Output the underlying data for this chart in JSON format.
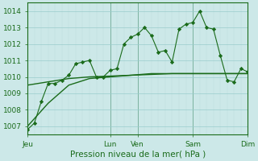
{
  "title": "",
  "xlabel": "Pression niveau de la mer( hPa )",
  "bg_color": "#cce8e8",
  "grid_color_major": "#99cccc",
  "grid_color_minor": "#bbdddd",
  "line_color": "#1a6b1a",
  "ylim": [
    1006.5,
    1014.5
  ],
  "xlim": [
    0,
    96
  ],
  "yticks": [
    1007,
    1008,
    1009,
    1010,
    1011,
    1012,
    1013,
    1014
  ],
  "xtick_positions": [
    0,
    36,
    48,
    72,
    96
  ],
  "xtick_labels": [
    "Jeu",
    "Lun",
    "Ven",
    "Sam",
    "Dim"
  ],
  "series1_x": [
    0,
    3,
    6,
    9,
    12,
    15,
    18,
    21,
    24,
    27,
    30,
    33,
    36,
    39,
    42,
    45,
    48,
    51,
    54,
    57,
    60,
    63,
    66,
    69,
    72,
    75,
    78,
    81,
    84,
    87,
    90,
    93,
    96
  ],
  "series1_y": [
    1006.8,
    1007.2,
    1008.5,
    1009.6,
    1009.6,
    1009.8,
    1010.1,
    1010.8,
    1010.9,
    1011.0,
    1010.0,
    1010.0,
    1010.4,
    1010.5,
    1012.0,
    1012.4,
    1012.6,
    1013.0,
    1012.5,
    1011.5,
    1011.6,
    1010.9,
    1012.9,
    1013.2,
    1013.3,
    1014.0,
    1013.0,
    1012.9,
    1011.3,
    1009.8,
    1009.7,
    1010.5,
    1010.3
  ],
  "series2_x": [
    0,
    9,
    18,
    27,
    36,
    45,
    54,
    63,
    72,
    81,
    90,
    96
  ],
  "series2_y": [
    1009.5,
    1009.7,
    1009.9,
    1010.0,
    1010.05,
    1010.1,
    1010.15,
    1010.2,
    1010.2,
    1010.2,
    1010.2,
    1010.2
  ],
  "series3_x": [
    0,
    9,
    18,
    27,
    36,
    45,
    54,
    63,
    72,
    81,
    90,
    96
  ],
  "series3_y": [
    1007.0,
    1008.4,
    1009.5,
    1009.9,
    1010.0,
    1010.1,
    1010.2,
    1010.2,
    1010.2,
    1010.2,
    1010.2,
    1010.2
  ]
}
